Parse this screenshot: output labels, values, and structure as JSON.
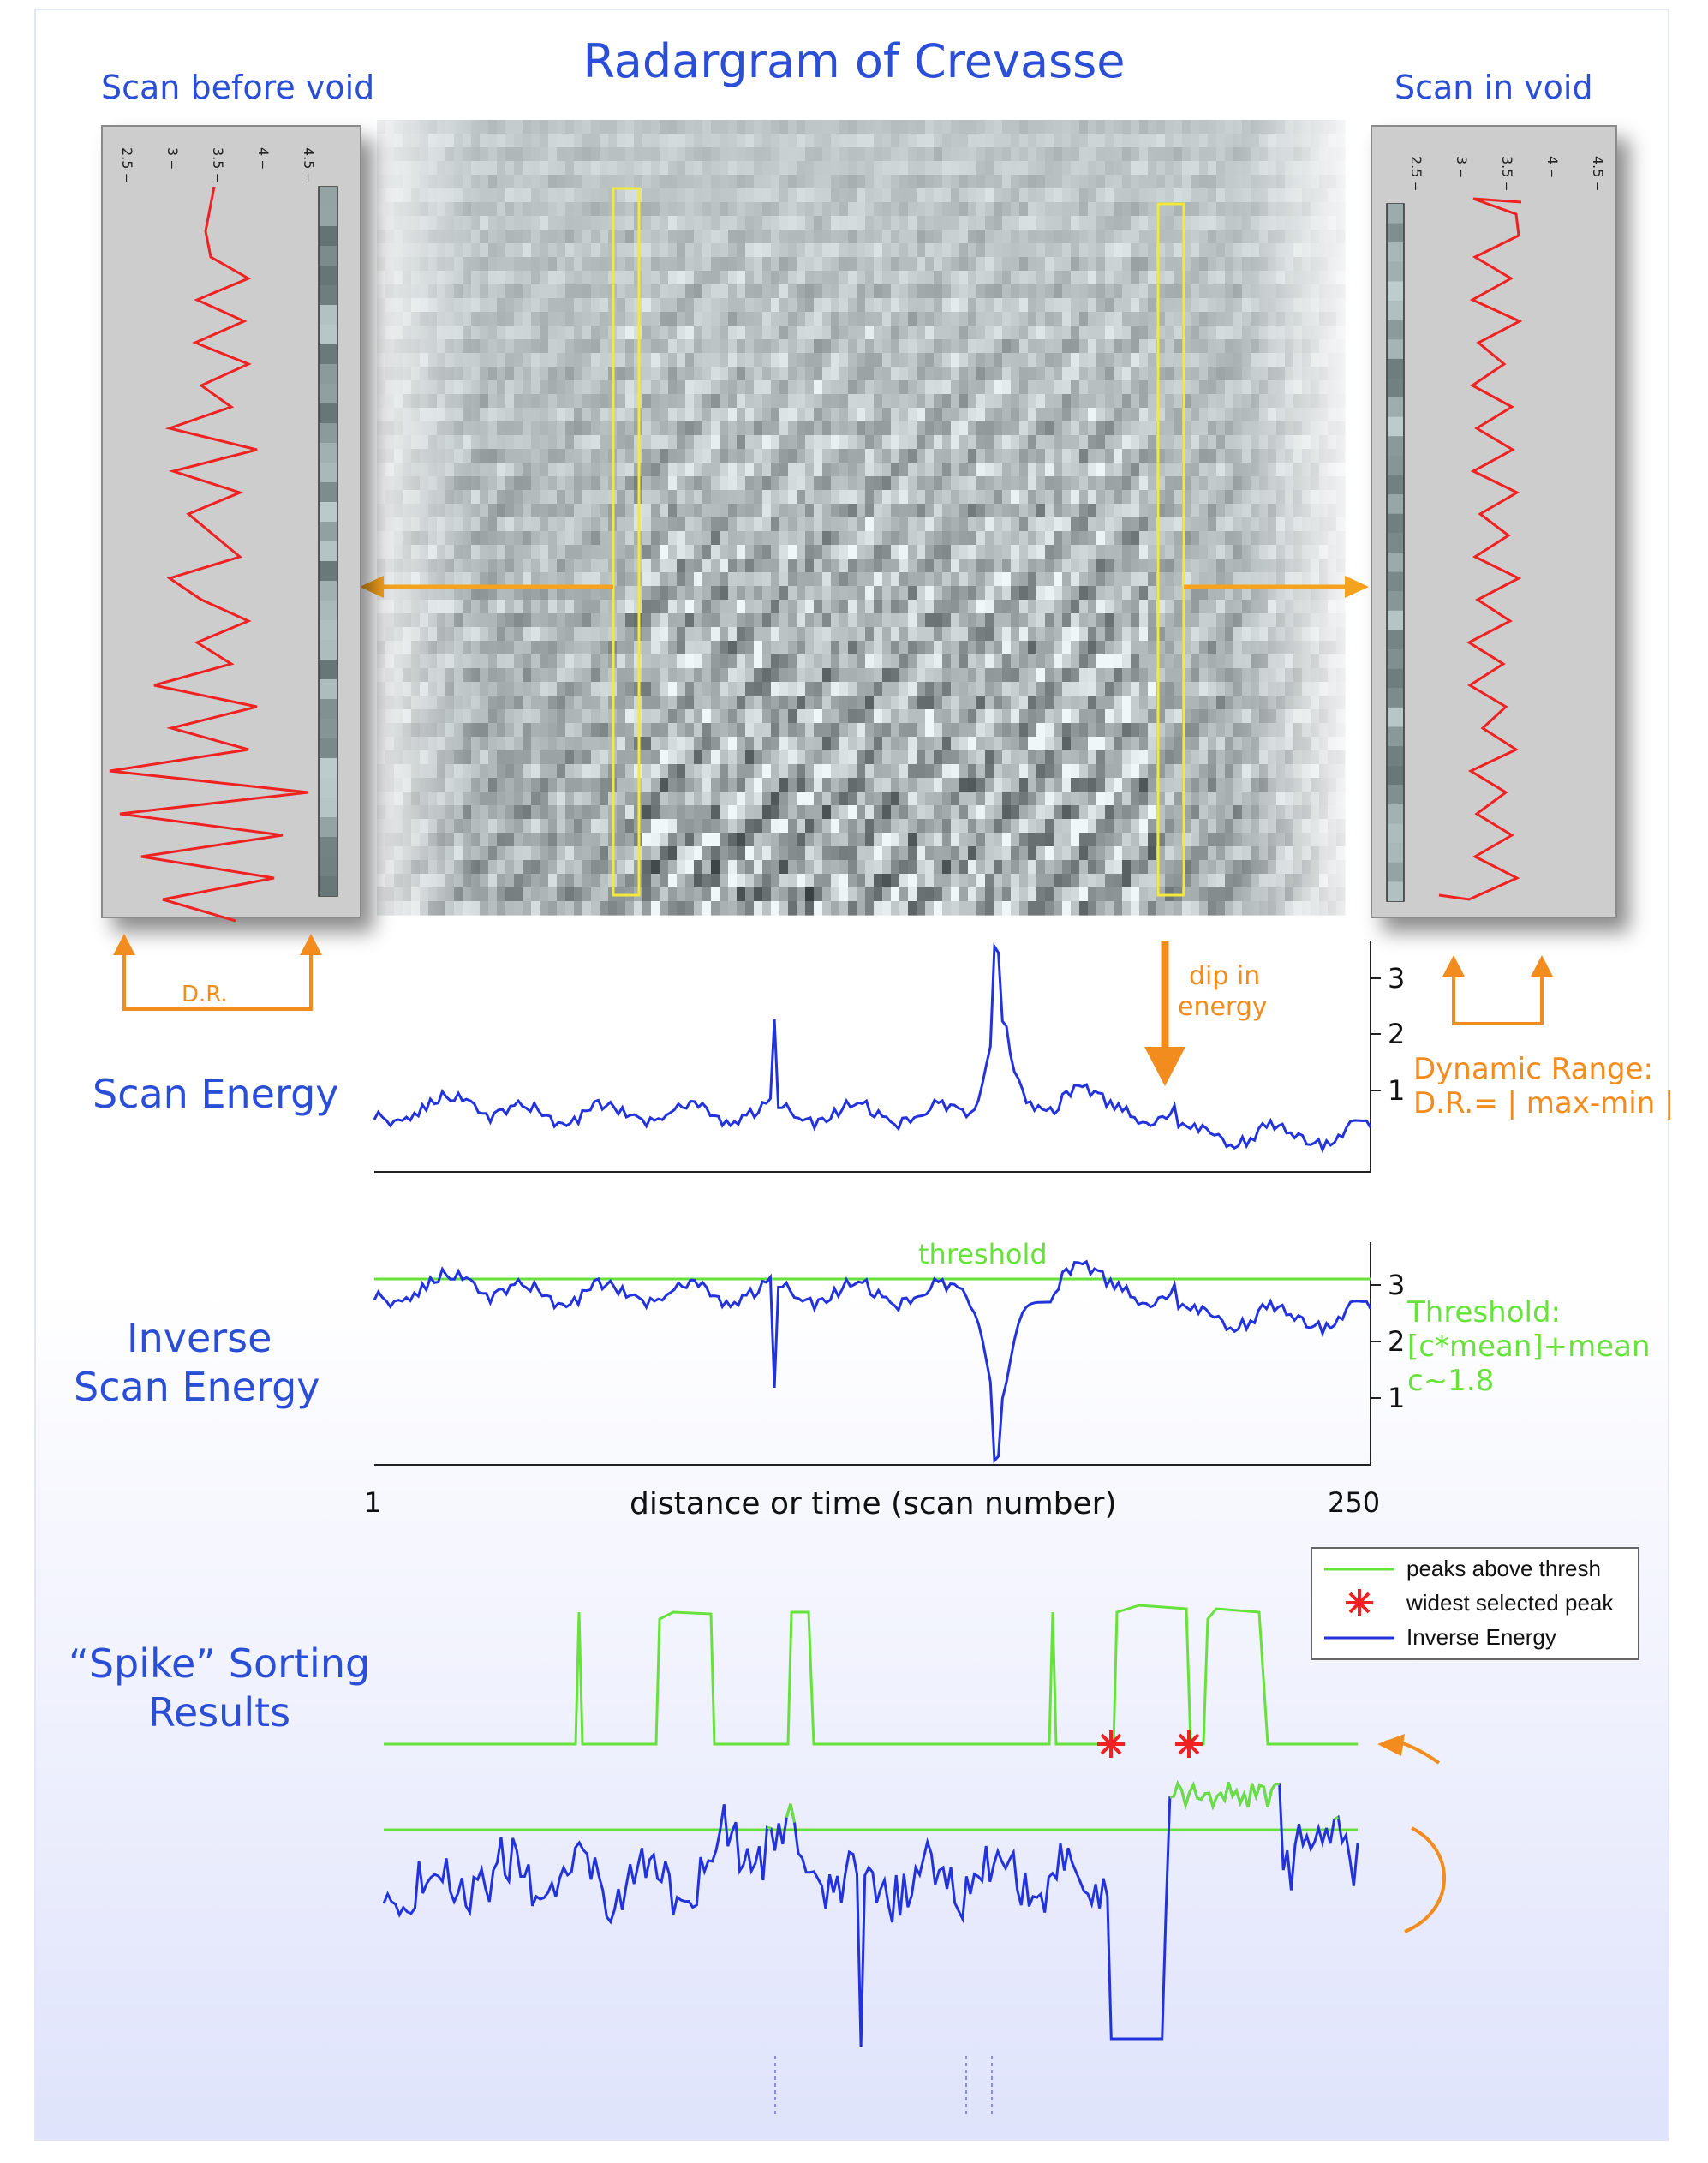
{
  "title": "Radargram of Crevasse",
  "labels": {
    "scan_before_void": "Scan before void",
    "scan_in_void": "Scan in void",
    "dr_short": "D.R.",
    "dip_in_energy": [
      "dip in",
      "energy"
    ],
    "dynamic_range": [
      "Dynamic Range:",
      "D.R.= | max-min |"
    ],
    "scan_energy": "Scan Energy",
    "inverse_scan_energy": [
      "Inverse",
      "Scan Energy"
    ],
    "threshold": "threshold",
    "threshold_formula": [
      "Threshold:",
      "[c*mean]+mean",
      "c~1.8"
    ],
    "x_axis": "distance or time (scan number)",
    "x_start": "1",
    "x_end": "250",
    "spike_sorting": [
      "“Spike” Sorting",
      "Results"
    ]
  },
  "panel_ticks": [
    "2.5",
    "3",
    "3.5",
    "4",
    "4.5"
  ],
  "energy_ticks": [
    "3",
    "2",
    "1"
  ],
  "inverse_ticks": [
    "3",
    "2",
    "1"
  ],
  "legend": {
    "items": [
      {
        "label": "peaks above thresh",
        "color": "#67e23a",
        "symbol": "line"
      },
      {
        "label": "widest selected peak",
        "color": "#ee2222",
        "symbol": "star"
      },
      {
        "label": "Inverse Energy",
        "color": "#2233dd",
        "symbol": "line"
      }
    ]
  },
  "colors": {
    "title_blue": "#2a4fd6",
    "orange": "#f28c1e",
    "green": "#67e23a",
    "signal_red": "#ee2222",
    "energy_blue": "#2233dd",
    "highlight_yellow": "#f2e93a"
  }
}
